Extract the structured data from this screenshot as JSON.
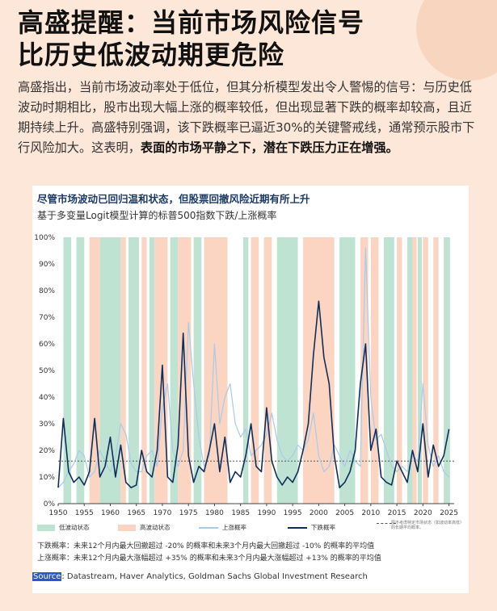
{
  "header": {
    "title_line1": "高盛提醒：当前市场风险信号",
    "title_line2": "比历史低波动期更危险"
  },
  "intro": {
    "text": "高盛指出，当前市场波动率处于低位，但其分析模型发出令人警惕的信号：与历史低波动时期相比，股市出现大幅上涨的概率较低，但出现显著下跌的概率却较高，且近期持续上升。高盛特别强调，该下跌概率已逼近30%的关键警戒线，通常预示股市下行风险加大。这表明，",
    "bold_text": "表面的市场平静之下，潜在下跌压力正在增强。"
  },
  "chart_data": {
    "type": "line",
    "title": "尽管市场波动已回归温和状态，但股票回撤风险近期有所上升",
    "subtitle": "基于多变量Logit模型计算的标普500指数下跌/上涨概率",
    "xlim": [
      1950,
      2026
    ],
    "ylim": [
      0,
      100
    ],
    "y_unit": "%",
    "x_ticks": [
      1950,
      1955,
      1960,
      1965,
      1970,
      1975,
      1980,
      1985,
      1990,
      1995,
      2000,
      2005,
      2010,
      2015,
      2020,
      2025
    ],
    "x_tick_labels": [
      "1950",
      "1955",
      "1960",
      "1965",
      "1970",
      "1975",
      "1980",
      "1985",
      "1990",
      "1995",
      "2000",
      "2005",
      "2010",
      "2015",
      "2020",
      "2025"
    ],
    "y_ticks": [
      0,
      10,
      20,
      30,
      40,
      50,
      60,
      70,
      80,
      90,
      100
    ],
    "y_tick_labels": [
      "0%",
      "10%",
      "20%",
      "30%",
      "40%",
      "50%",
      "60%",
      "70%",
      "80%",
      "90%",
      "100%"
    ],
    "average_line": 16,
    "regimes": {
      "low_vol": [
        [
          1951,
          1952.5
        ],
        [
          1953.5,
          1955
        ],
        [
          1958,
          1962
        ],
        [
          1963.5,
          1965.5
        ],
        [
          1967.5,
          1968.5
        ],
        [
          1971.5,
          1973
        ],
        [
          1976,
          1977.5
        ],
        [
          1985.5,
          1986.5
        ],
        [
          1992,
          1996
        ],
        [
          2004,
          2007
        ],
        [
          2012.5,
          2014.5
        ],
        [
          2017,
          2018
        ],
        [
          2019,
          2019.8
        ],
        [
          2024,
          2025.2
        ]
      ],
      "high_vol": [
        [
          1956,
          1958
        ],
        [
          1962,
          1963
        ],
        [
          1966,
          1967
        ],
        [
          1968.5,
          1971
        ],
        [
          1973,
          1975.5
        ],
        [
          1978,
          1982.5
        ],
        [
          1987,
          1988.5
        ],
        [
          1989.5,
          1991
        ],
        [
          1997,
          2003
        ],
        [
          2008,
          2009.5
        ],
        [
          2010,
          2011.5
        ],
        [
          2015,
          2016
        ],
        [
          2018,
          2018.8
        ],
        [
          2020,
          2021
        ],
        [
          2022,
          2023
        ]
      ]
    },
    "series": [
      {
        "name": "上涨概率",
        "color": "#a9cbe8",
        "x": [
          1950,
          1951,
          1952,
          1953,
          1954,
          1955,
          1956,
          1957,
          1958,
          1959,
          1960,
          1961,
          1962,
          1963,
          1964,
          1965,
          1966,
          1967,
          1968,
          1969,
          1970,
          1971,
          1972,
          1973,
          1974,
          1975,
          1976,
          1977,
          1978,
          1979,
          1980,
          1981,
          1982,
          1983,
          1984,
          1985,
          1986,
          1987,
          1988,
          1989,
          1990,
          1991,
          1992,
          1993,
          1994,
          1995,
          1996,
          1997,
          1998,
          1999,
          2000,
          2001,
          2002,
          2003,
          2004,
          2005,
          2006,
          2007,
          2008,
          2009,
          2010,
          2011,
          2012,
          2013,
          2014,
          2015,
          2016,
          2017,
          2018,
          2019,
          2020,
          2021,
          2022,
          2023,
          2024,
          2025
        ],
        "values": [
          6,
          8,
          12,
          15,
          20,
          18,
          10,
          12,
          20,
          16,
          12,
          18,
          30,
          26,
          15,
          12,
          12,
          18,
          20,
          14,
          36,
          45,
          20,
          14,
          20,
          68,
          45,
          25,
          14,
          18,
          60,
          30,
          40,
          45,
          30,
          25,
          28,
          18,
          20,
          22,
          26,
          34,
          24,
          18,
          16,
          18,
          22,
          20,
          24,
          34,
          18,
          12,
          14,
          22,
          18,
          14,
          20,
          16,
          14,
          96,
          40,
          24,
          26,
          20,
          14,
          12,
          14,
          12,
          18,
          16,
          45,
          22,
          14,
          18,
          12,
          10
        ]
      },
      {
        "name": "下跌概率",
        "color": "#0e2f5c",
        "x": [
          1950,
          1951,
          1952,
          1953,
          1954,
          1955,
          1956,
          1957,
          1958,
          1959,
          1960,
          1961,
          1962,
          1963,
          1964,
          1965,
          1966,
          1967,
          1968,
          1969,
          1970,
          1971,
          1972,
          1973,
          1974,
          1975,
          1976,
          1977,
          1978,
          1979,
          1980,
          1981,
          1982,
          1983,
          1984,
          1985,
          1986,
          1987,
          1988,
          1989,
          1990,
          1991,
          1992,
          1993,
          1994,
          1995,
          1996,
          1997,
          1998,
          1999,
          2000,
          2001,
          2002,
          2003,
          2004,
          2005,
          2006,
          2007,
          2008,
          2009,
          2010,
          2011,
          2012,
          2013,
          2014,
          2015,
          2016,
          2017,
          2018,
          2019,
          2020,
          2021,
          2022,
          2023,
          2024,
          2025
        ],
        "values": [
          6,
          32,
          12,
          8,
          10,
          7,
          12,
          32,
          10,
          14,
          25,
          10,
          22,
          8,
          6,
          7,
          20,
          12,
          10,
          20,
          52,
          10,
          8,
          22,
          64,
          18,
          8,
          14,
          12,
          20,
          30,
          12,
          25,
          8,
          12,
          10,
          18,
          30,
          14,
          12,
          36,
          16,
          10,
          7,
          10,
          8,
          12,
          20,
          30,
          56,
          76,
          55,
          45,
          18,
          6,
          8,
          12,
          20,
          45,
          60,
          20,
          28,
          10,
          8,
          7,
          16,
          12,
          8,
          20,
          12,
          30,
          10,
          22,
          14,
          18,
          28
        ]
      }
    ],
    "legend": [
      {
        "label": "低波动状态"
      },
      {
        "label": "高波动状态"
      },
      {
        "label": "上涨概率"
      },
      {
        "label": "下跌概率"
      },
      {
        "label": "图不考虑特定市场状态（如波动率高低）的长期平均概率。"
      }
    ]
  },
  "definitions": {
    "down": "下跌概率：未来12个月内最大回撤超过 -20% 的概率和未来3个月内最大回撤超过 -10% 的概率的平均值",
    "up": "上涨概率：未来12个月内最大涨幅超过 +35% 的概率和未来3个月内最大涨幅超过 +13% 的概率的平均值"
  },
  "source": {
    "label": "Source",
    "text": ": Datastream, Haver Analytics, Goldman Sachs Global Investment Research"
  },
  "colors": {
    "low_vol": "#bfe3d3",
    "high_vol": "#fbd5c2",
    "average_line": "#555555",
    "background": "#fce7d8"
  }
}
